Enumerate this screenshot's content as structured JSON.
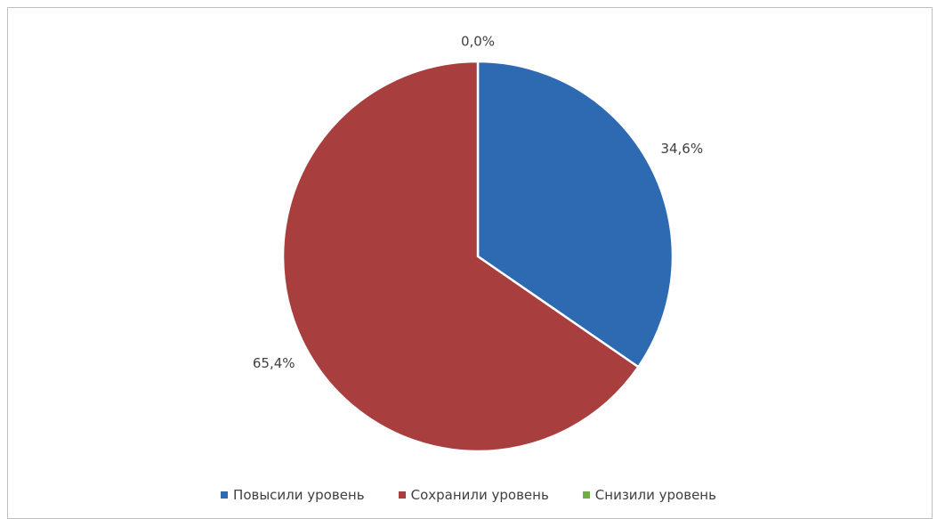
{
  "chart_data": {
    "type": "pie",
    "categories": [
      "Повысили уровень",
      "Сохранили уровень",
      "Снизили уровень"
    ],
    "values": [
      34.6,
      65.4,
      0.0
    ],
    "data_labels": [
      "34,6%",
      "65,4%",
      "0,0%"
    ],
    "colors": [
      "#2e6ab1",
      "#a83e3e",
      "#70ad47"
    ],
    "legend_position": "bottom"
  }
}
